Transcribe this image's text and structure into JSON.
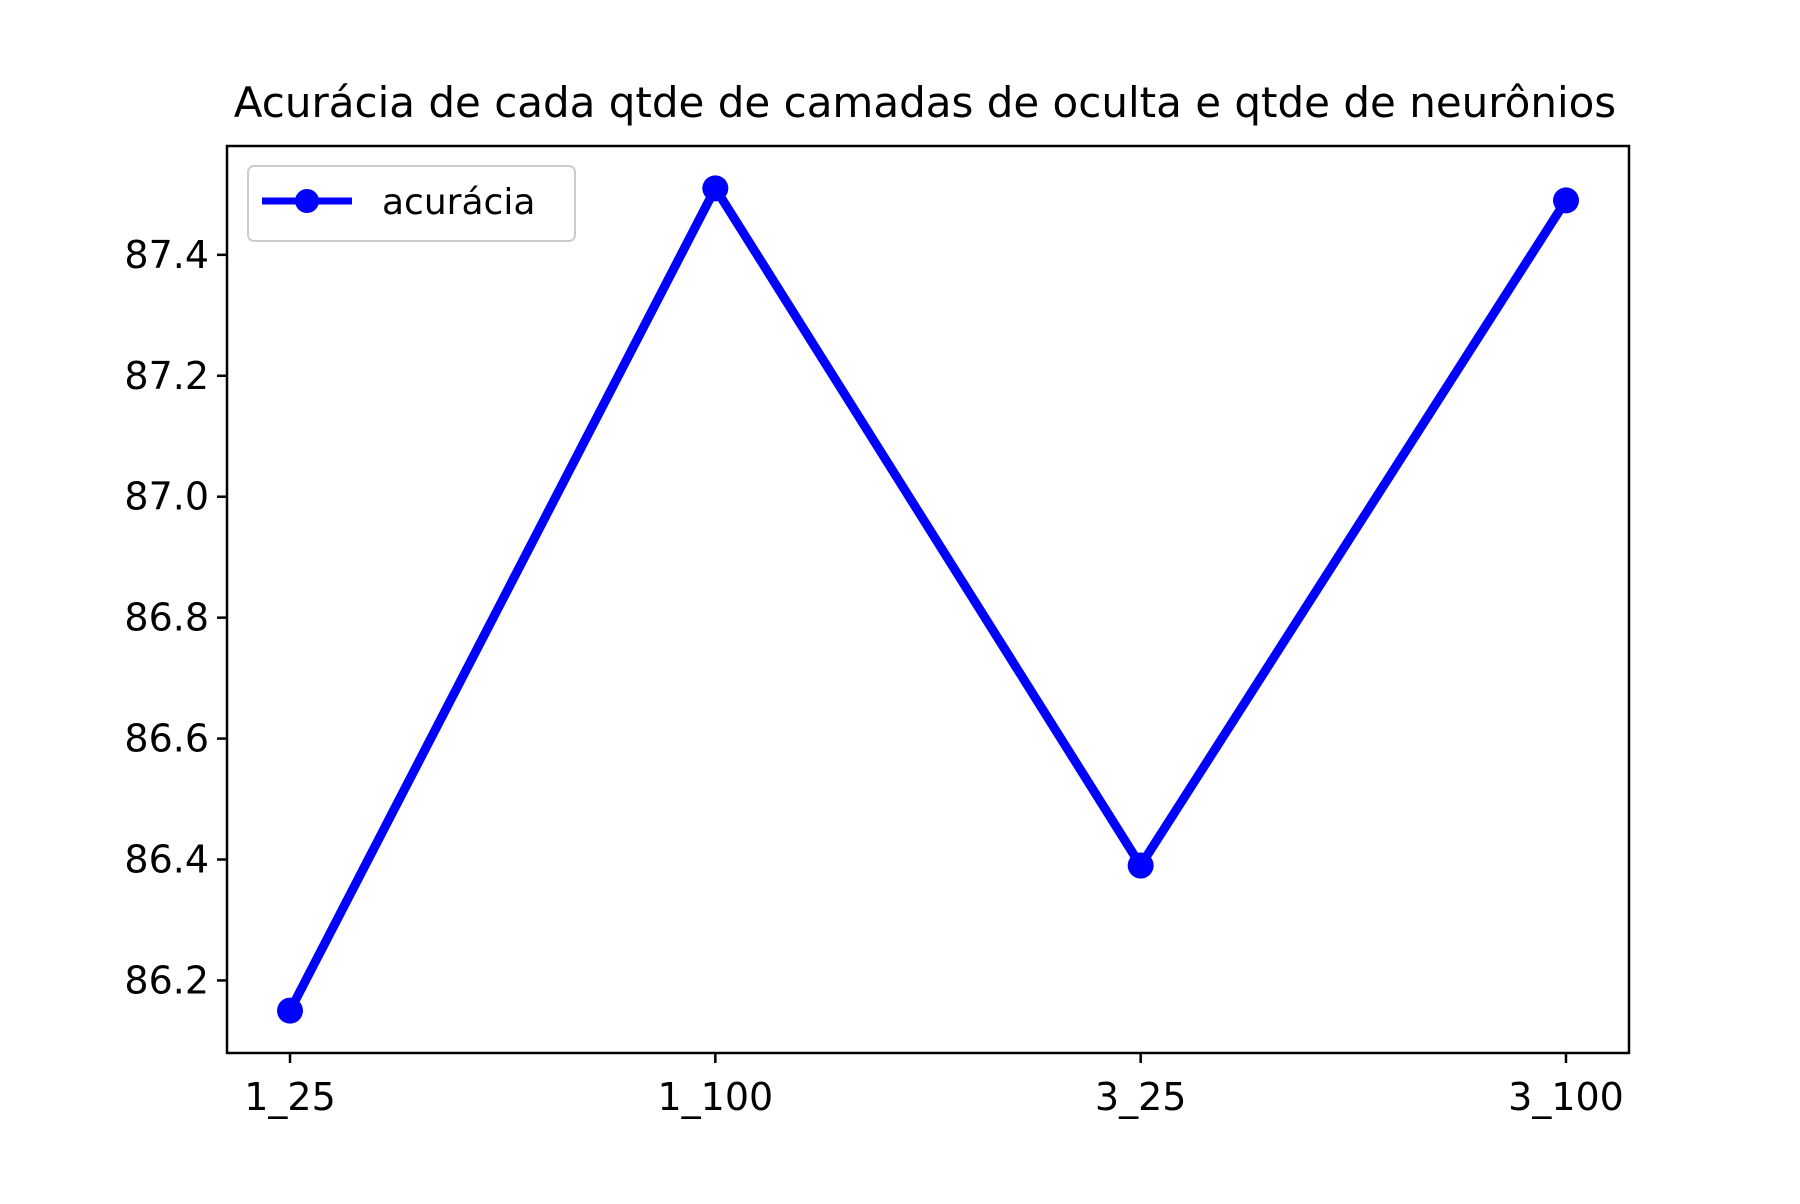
{
  "chart_data": {
    "type": "line",
    "title": "Acurácia de cada qtde de camadas de oculta e qtde de neurônios",
    "xlabel": "",
    "ylabel": "",
    "categories": [
      "1_25",
      "1_100",
      "3_25",
      "3_100"
    ],
    "series": [
      {
        "name": "acurácia",
        "values": [
          86.15,
          87.51,
          86.39,
          87.49
        ],
        "color": "#0000ff",
        "marker": "circle"
      }
    ],
    "ylim": [
      86.08,
      87.58
    ],
    "yticks": [
      "86.2",
      "86.4",
      "86.6",
      "86.8",
      "87.0",
      "87.2",
      "87.4"
    ],
    "grid": false,
    "legend_position": "top-left"
  }
}
